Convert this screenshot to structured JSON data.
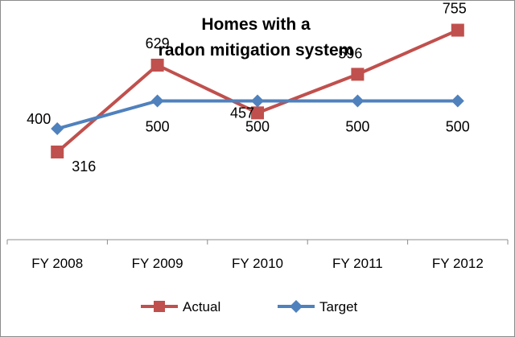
{
  "chart_data": {
    "type": "line",
    "title_lines": [
      "Homes with a",
      "radon  mitigation system"
    ],
    "categories": [
      "FY 2008",
      "FY 2009",
      "FY 2010",
      "FY 2011",
      "FY 2012"
    ],
    "series": [
      {
        "name": "Actual",
        "values": [
          316,
          629,
          457,
          596,
          755
        ],
        "color": "#c0504d",
        "marker": "square"
      },
      {
        "name": "Target",
        "values": [
          400,
          500,
          500,
          500,
          500
        ],
        "color": "#4f81bd",
        "marker": "diamond"
      }
    ],
    "ylim": [
      0,
      1000
    ],
    "grid": false,
    "legend_position": "bottom"
  }
}
